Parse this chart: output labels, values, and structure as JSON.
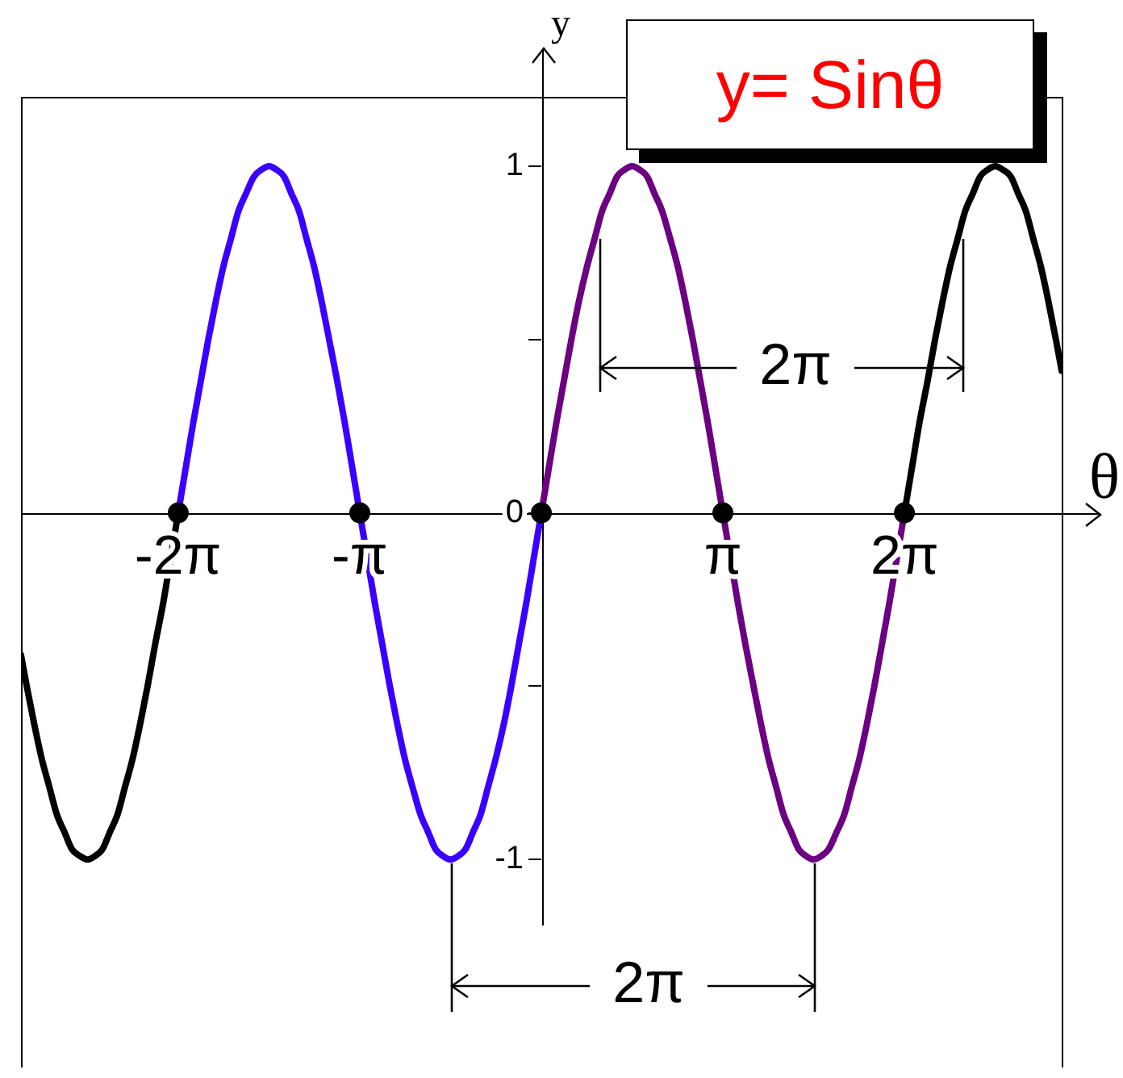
{
  "chart_data": {
    "type": "line",
    "title": "y= Sinθ",
    "xlabel": "θ",
    "ylabel": "y",
    "annotations": [
      "2π",
      "2π"
    ],
    "xlim": [
      -9,
      9
    ],
    "ylim": [
      -1.6,
      1.2
    ],
    "xticks": [
      {
        "value": -6.283,
        "label": "-2π"
      },
      {
        "value": -3.142,
        "label": "-π"
      },
      {
        "value": 3.142,
        "label": "π"
      },
      {
        "value": 6.283,
        "label": "2π"
      }
    ],
    "yticks": [
      -1,
      {
        "value": -0.5,
        "label": null
      },
      0,
      {
        "value": 0.5,
        "label": null
      },
      1
    ],
    "marker": "none",
    "series": [
      {
        "color": "#000000",
        "x": [
          -9,
          -8.9,
          -8.77,
          -8.64,
          -8.51,
          -8.38,
          -8.25,
          -8.12,
          -7.98,
          -7.85,
          -7.72,
          -7.59,
          -7.46,
          -7.33,
          -7.2,
          -7.07,
          -6.94,
          -6.81,
          -6.68,
          -6.54,
          -6.41,
          -6.28
        ],
        "values": [
          -0.41,
          -0.5,
          -0.61,
          -0.71,
          -0.79,
          -0.87,
          -0.92,
          -0.97,
          -0.99,
          -1,
          -0.99,
          -0.97,
          -0.92,
          -0.87,
          -0.79,
          -0.71,
          -0.61,
          -0.5,
          -0.38,
          -0.26,
          -0.13,
          0
        ]
      },
      {
        "color": "#3a00ff",
        "x": [
          -6.28,
          -6.15,
          -6.02,
          -5.89,
          -5.76,
          -5.63,
          -5.5,
          -5.37,
          -5.24,
          -5.11,
          -4.97,
          -4.84,
          -4.71,
          -4.58,
          -4.45,
          -4.32,
          -4.19,
          -4.06,
          -3.93,
          -3.8,
          -3.67,
          -3.53,
          -3.4,
          -3.27,
          -3.14,
          -3.01,
          -2.88,
          -2.75,
          -2.62,
          -2.49,
          -2.36,
          -2.23,
          -2.09,
          -1.96,
          -1.83,
          -1.7,
          -1.57,
          -1.44,
          -1.31,
          -1.18,
          -1.05,
          -0.92,
          -0.79,
          -0.65,
          -0.52,
          -0.39,
          -0.26,
          -0.13,
          0
        ],
        "values": [
          0,
          0.13,
          0.26,
          0.38,
          0.5,
          0.61,
          0.71,
          0.79,
          0.87,
          0.92,
          0.97,
          0.99,
          1,
          0.99,
          0.97,
          0.92,
          0.87,
          0.79,
          0.71,
          0.61,
          0.5,
          0.38,
          0.26,
          0.13,
          0,
          -0.13,
          -0.26,
          -0.38,
          -0.5,
          -0.61,
          -0.71,
          -0.79,
          -0.87,
          -0.92,
          -0.97,
          -0.99,
          -1,
          -0.99,
          -0.97,
          -0.92,
          -0.87,
          -0.79,
          -0.71,
          -0.61,
          -0.5,
          -0.38,
          -0.26,
          -0.13,
          0
        ]
      },
      {
        "color": "#6b0080",
        "x": [
          0,
          0.13,
          0.26,
          0.39,
          0.52,
          0.65,
          0.79,
          0.92,
          1.05,
          1.18,
          1.31,
          1.44,
          1.57,
          1.7,
          1.83,
          1.96,
          2.09,
          2.23,
          2.36,
          2.49,
          2.62,
          2.75,
          2.88,
          3.01,
          3.14,
          3.27,
          3.4,
          3.53,
          3.67,
          3.8,
          3.93,
          4.06,
          4.19,
          4.32,
          4.45,
          4.58,
          4.71,
          4.84,
          4.97,
          5.11,
          5.24,
          5.37,
          5.5,
          5.63,
          5.76,
          5.89,
          6.02,
          6.15,
          6.28
        ],
        "values": [
          0,
          0.13,
          0.26,
          0.38,
          0.5,
          0.61,
          0.71,
          0.79,
          0.87,
          0.92,
          0.97,
          0.99,
          1,
          0.99,
          0.97,
          0.92,
          0.87,
          0.79,
          0.71,
          0.61,
          0.5,
          0.38,
          0.26,
          0.13,
          0,
          -0.13,
          -0.26,
          -0.38,
          -0.5,
          -0.61,
          -0.71,
          -0.79,
          -0.87,
          -0.92,
          -0.97,
          -0.99,
          -1,
          -0.99,
          -0.97,
          -0.92,
          -0.87,
          -0.79,
          -0.71,
          -0.61,
          -0.5,
          -0.38,
          -0.26,
          -0.13,
          0
        ]
      },
      {
        "color": "#000000",
        "x": [
          6.28,
          6.41,
          6.54,
          6.68,
          6.81,
          6.94,
          7.07,
          7.2,
          7.33,
          7.46,
          7.59,
          7.72,
          7.85,
          7.98,
          8.12,
          8.25,
          8.38,
          8.51,
          8.64,
          8.77,
          8.9,
          9
        ],
        "values": [
          0,
          0.13,
          0.26,
          0.38,
          0.5,
          0.61,
          0.71,
          0.79,
          0.87,
          0.92,
          0.97,
          0.99,
          1,
          0.99,
          0.97,
          0.92,
          0.87,
          0.79,
          0.71,
          0.61,
          0.5,
          0.41
        ]
      },
      {
        "type": "scatter",
        "marker": "circle",
        "color": "#000000",
        "x": [
          -6.28,
          -3.14,
          0,
          3.14,
          6.28
        ],
        "values": [
          0,
          0,
          0,
          0,
          0
        ]
      }
    ]
  }
}
